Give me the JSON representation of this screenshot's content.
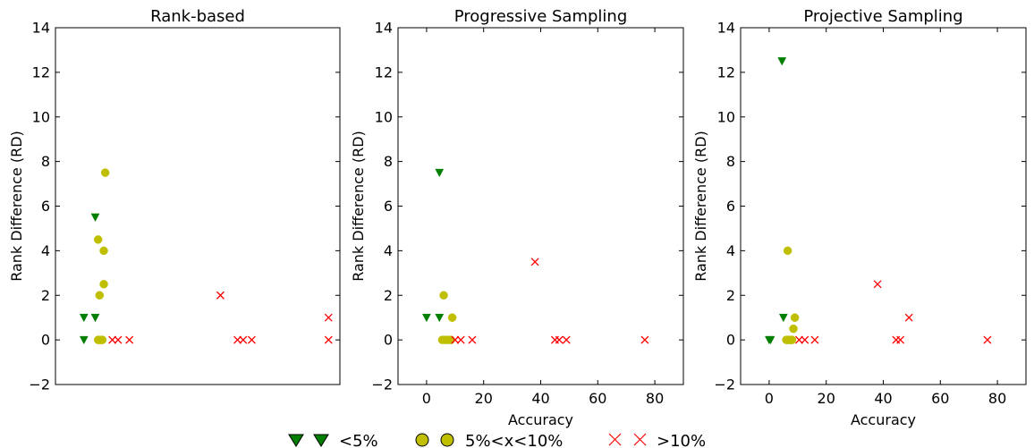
{
  "colors": {
    "green": "#007f00",
    "yellow": "#bfbf00",
    "red": "#ff0000",
    "axis": "#000000"
  },
  "legend": {
    "items": [
      {
        "label": "<5%",
        "marker": "triangle-down",
        "color": "#007f00"
      },
      {
        "label": "5%<x<10%",
        "marker": "circle",
        "color": "#bfbf00"
      },
      {
        "label": ">10%",
        "marker": "x",
        "color": "#ff0000"
      }
    ]
  },
  "chart_data": [
    {
      "type": "scatter",
      "title": "Rank-based",
      "xlabel": "",
      "ylabel": "Rank Difference (RD)",
      "xlim": [
        -10,
        90
      ],
      "ylim": [
        -2,
        14
      ],
      "xticks_shown": false,
      "yticks": [
        "−2",
        "0",
        "2",
        "4",
        "6",
        "8",
        "10",
        "12",
        "14"
      ],
      "series": [
        {
          "name": "<5%",
          "marker": "triangle-down",
          "points": [
            [
              0,
              0
            ],
            [
              0,
              1
            ],
            [
              4,
              1
            ],
            [
              4,
              5.5
            ]
          ]
        },
        {
          "name": "5%<x<10%",
          "marker": "circle",
          "points": [
            [
              5,
              0
            ],
            [
              5.5,
              0
            ],
            [
              6,
              0
            ],
            [
              6.5,
              0
            ],
            [
              5,
              4.5
            ],
            [
              7,
              4
            ],
            [
              5.5,
              2
            ],
            [
              7,
              2.5
            ],
            [
              7.5,
              7.5
            ]
          ]
        },
        {
          "name": ">10%",
          "marker": "x",
          "points": [
            [
              10,
              0
            ],
            [
              12,
              0
            ],
            [
              16,
              0
            ],
            [
              48,
              2
            ],
            [
              54,
              0
            ],
            [
              56,
              0
            ],
            [
              59,
              0
            ],
            [
              86,
              0
            ],
            [
              86,
              1
            ]
          ]
        }
      ]
    },
    {
      "type": "scatter",
      "title": "Progressive Sampling",
      "xlabel": "Accuracy",
      "ylabel": "Rank Difference (RD)",
      "xlim": [
        -10,
        90
      ],
      "ylim": [
        -2,
        14
      ],
      "xticks": [
        "0",
        "20",
        "40",
        "60",
        "80"
      ],
      "yticks": [
        "−2",
        "0",
        "2",
        "4",
        "6",
        "8",
        "10",
        "12",
        "14"
      ],
      "series": [
        {
          "name": "<5%",
          "marker": "triangle-down",
          "points": [
            [
              0,
              1
            ],
            [
              4.5,
              1
            ],
            [
              4.5,
              7.5
            ]
          ]
        },
        {
          "name": "5%<x<10%",
          "marker": "circle",
          "points": [
            [
              5.5,
              0
            ],
            [
              6.5,
              0
            ],
            [
              7.5,
              0
            ],
            [
              8.5,
              0
            ],
            [
              6,
              2
            ],
            [
              9,
              1
            ]
          ]
        },
        {
          "name": ">10%",
          "marker": "x",
          "points": [
            [
              10,
              0
            ],
            [
              12,
              0
            ],
            [
              16,
              0
            ],
            [
              38,
              3.5
            ],
            [
              45,
              0
            ],
            [
              46.5,
              0
            ],
            [
              49,
              0
            ],
            [
              76.5,
              0
            ]
          ]
        }
      ]
    },
    {
      "type": "scatter",
      "title": "Projective Sampling",
      "xlabel": "Accuracy",
      "ylabel": "Rank Difference (RD)",
      "xlim": [
        -10,
        90
      ],
      "ylim": [
        -2,
        14
      ],
      "xticks": [
        "0",
        "20",
        "40",
        "60",
        "80"
      ],
      "yticks": [
        "−2",
        "0",
        "2",
        "4",
        "6",
        "8",
        "10",
        "12",
        "14"
      ],
      "series": [
        {
          "name": "<5%",
          "marker": "triangle-down",
          "points": [
            [
              0,
              0
            ],
            [
              0.5,
              0
            ],
            [
              4.5,
              12.5
            ],
            [
              5,
              1
            ]
          ]
        },
        {
          "name": "5%<x<10%",
          "marker": "circle",
          "points": [
            [
              6,
              0
            ],
            [
              6.5,
              0
            ],
            [
              7,
              0
            ],
            [
              7.5,
              0
            ],
            [
              8,
              0
            ],
            [
              6.5,
              4
            ],
            [
              8.5,
              0.5
            ],
            [
              9,
              1
            ]
          ]
        },
        {
          "name": ">10%",
          "marker": "x",
          "points": [
            [
              10.5,
              0
            ],
            [
              12.5,
              0
            ],
            [
              16,
              0
            ],
            [
              38,
              2.5
            ],
            [
              44.5,
              0
            ],
            [
              46,
              0
            ],
            [
              49,
              1
            ],
            [
              76.5,
              0
            ]
          ]
        }
      ]
    }
  ]
}
